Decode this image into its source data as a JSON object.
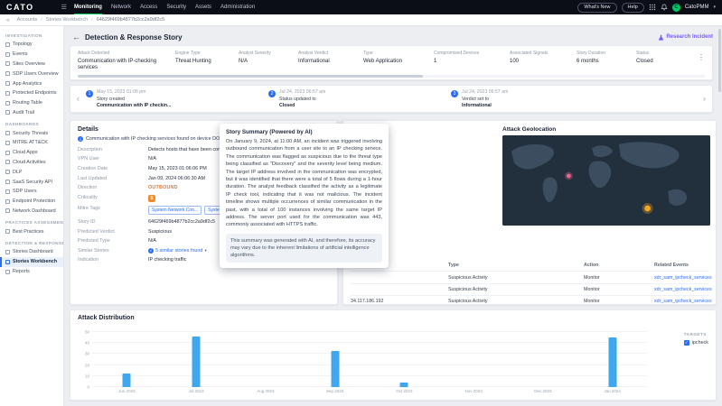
{
  "icons": {
    "menu": "☰",
    "kebab": "⋮",
    "chevron_left": "‹",
    "chevron_right": "›",
    "back": "←",
    "caret": "▾",
    "collapse": "«",
    "info": "i",
    "check": "✓"
  },
  "colors": {
    "accent_green": "#00c766",
    "link_blue": "#2b6cf5",
    "bar_blue": "#3fa7f0",
    "warn_orange": "#f08c2d",
    "research_purple": "#7b5cf5"
  },
  "topbar": {
    "brand": "CATO",
    "nav": [
      "Monitoring",
      "Network",
      "Access",
      "Security",
      "Assets",
      "Administration"
    ],
    "active_nav": "Monitoring",
    "whats_new_label": "What's New",
    "help_label": "Help",
    "username": "CatoPMM",
    "avatar_initial": "C"
  },
  "breadcrumb": {
    "items": [
      "Accounts",
      "Stories Workbench",
      "64629f469b4877b2cc2a9df2c5"
    ]
  },
  "sidebar": {
    "sections": [
      {
        "header": "INVESTIGATION",
        "items": [
          "Topology",
          "Events",
          "Sites Overview",
          "SDP Users Overview",
          "App Analytics",
          "Protected Endpoints",
          "Routing Table",
          "Audit Trail"
        ]
      },
      {
        "header": "DASHBOARDS",
        "items": [
          "Security Threats",
          "MITRE ATT&CK",
          "Cloud Apps",
          "Cloud Activities",
          "DLP",
          "SaaS Security API",
          "SDP Users",
          "Endpoint Protection",
          "Network Dashboard"
        ]
      },
      {
        "header": "PRACTICES ASSESSMENT",
        "items": [
          "Best Practices"
        ]
      },
      {
        "header": "DETECTION & RESPONSE",
        "items": [
          "Stories Dashboard",
          "Stories Workbench",
          "Reports"
        ]
      }
    ],
    "active_item": "Stories Workbench"
  },
  "page": {
    "title": "Detection & Response Story",
    "research_link": "Research Incident"
  },
  "summary": {
    "fields": [
      {
        "label": "Attack Detected",
        "value": "Communication with IP-checking services"
      },
      {
        "label": "Engine Type",
        "value": "Threat Hunting"
      },
      {
        "label": "Analyst Severity",
        "value": "N/A"
      },
      {
        "label": "Analyst Verdict",
        "value": "Informational"
      },
      {
        "label": "Type",
        "value": "Web Application"
      },
      {
        "label": "Compromised Devices",
        "value": "1"
      },
      {
        "label": "Associated Signals",
        "value": "100"
      },
      {
        "label": "Story Duration",
        "value": "6 months"
      },
      {
        "label": "Status",
        "value": "Closed"
      }
    ]
  },
  "timeline": {
    "events": [
      {
        "num": "1",
        "date": "May 15, 2023 01:06 pm",
        "action": "Story created",
        "detail": "Communication with IP checkin..."
      },
      {
        "num": "2",
        "date": "Jul 24, 2023 06:57 am",
        "action": "Status updated to",
        "detail": "Closed"
      },
      {
        "num": "3",
        "date": "Jul 24, 2023 06:57 am",
        "action": "Verdict set to",
        "detail": "Informational"
      }
    ]
  },
  "details": {
    "title": "Details",
    "banner": "Communication with IP checking services found on device DO-Illenberg-MacBook-Pro",
    "rows": [
      {
        "label": "Description",
        "value": "Detects hosts that have been communicating with external IP chec..."
      },
      {
        "label": "VPN User",
        "value": "N/A"
      },
      {
        "label": "Creation Date",
        "value": "May 15, 2023 01:06:06 PM"
      },
      {
        "label": "Last Updated",
        "value": "Jan 09, 2024 06:06:30 AM"
      },
      {
        "label": "Direction",
        "value": "OUTBOUND"
      },
      {
        "label": "Criticality",
        "value": "5"
      },
      {
        "label": "Mitre Tags",
        "value": ""
      },
      {
        "label": "Story ID",
        "value": "64629f469b4877b2cc2a9df2c5"
      },
      {
        "label": "Predicted Verdict",
        "value": "Suspicious"
      },
      {
        "label": "Predicted Type",
        "value": "N/A"
      },
      {
        "label": "Similar Stories",
        "value": "5 similar stories found"
      },
      {
        "label": "Indication",
        "value": "IP checking traffic"
      }
    ],
    "mitre_tags": [
      "System Network Con...",
      "System Network Con..."
    ]
  },
  "story_summary": {
    "title": "Story Summary (Powered by AI)",
    "body": "On January 9, 2024, at 11:00 AM, an incident was triggered involving outbound communication from a user site to an IP checking service. The communication was flagged as suspicious due to the threat type being classified as \"Discovery\" and the severity level being medium. The target IP address involved in the communication was encrypted, but it was identified that there were a total of 5 flows during a 1-hour duration. The analyst feedback classified the activity as a legitimate IP check tool, indicating that it was not malicious. The incident timeline shows multiple occurrences of similar communication in the past, with a total of 100 instances involving the same target IP address. The server port used for the communication was 443, commonly associated with HTTPS traffic.",
    "disclaimer": "This summary was generated with AI, and therefore, its accuracy may vary due to the inherent limitations of artificial intelligence algorithms."
  },
  "geolocation": {
    "title": "Attack Geolocation"
  },
  "signals_table": {
    "columns": [
      "",
      "Type",
      "Action",
      "Related Events"
    ],
    "rows": [
      [
        "",
        "Suspicious Activity",
        "Monitor",
        "xdr_sam_ipcheck_services"
      ],
      [
        "",
        "Suspicious Activity",
        "Monitor",
        "xdr_sam_ipcheck_services"
      ],
      [
        "34.117.186.192",
        "Suspicious Activity",
        "Monitor",
        "xdr_sam_ipcheck_services"
      ]
    ]
  },
  "chart_data": {
    "type": "bar",
    "title": "Attack Distribution",
    "categories": [
      "Jun 2023",
      "Jul 2023",
      "Aug 2023",
      "Sep 2023",
      "Oct 2023",
      "Nov 2023",
      "Dec 2023",
      "Jan 2024"
    ],
    "series": [
      {
        "name": "ipcheck",
        "values": [
          12,
          46,
          0,
          33,
          4,
          0,
          0,
          45
        ]
      }
    ],
    "xlabel": "",
    "ylabel": "",
    "ylim": [
      0,
      50
    ],
    "yticks": [
      0,
      10,
      20,
      30,
      40,
      50
    ],
    "grid": true,
    "legend_title": "TARGETS",
    "legend_position": "right",
    "bar_color": "#3fa7f0"
  }
}
